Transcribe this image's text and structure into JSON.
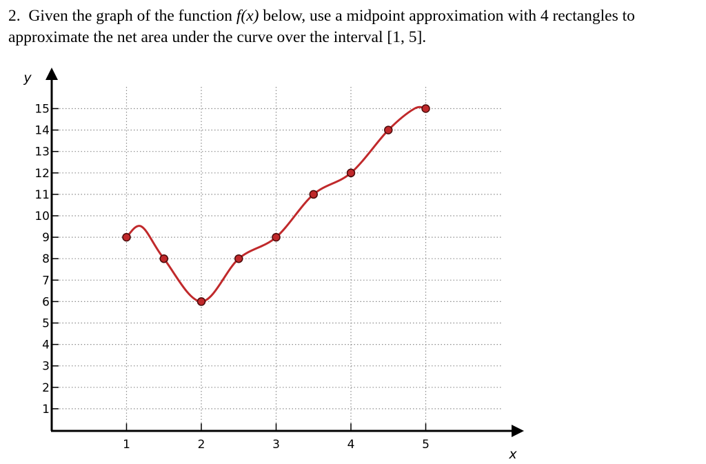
{
  "question": {
    "number": "2.",
    "line1_pre": "Given the graph of the function ",
    "func": "f(x)",
    "line1_post": " below, use a midpoint approximation with 4 rectangles to",
    "line2": "approximate the net area under the curve over the interval [1, 5]."
  },
  "chart_data": {
    "type": "line",
    "title": "",
    "xlabel": "x",
    "ylabel": "y",
    "xlim": [
      0,
      6
    ],
    "ylim": [
      0,
      16
    ],
    "grid": true,
    "x_ticks": [
      1,
      2,
      3,
      4,
      5
    ],
    "y_ticks": [
      1,
      2,
      3,
      4,
      5,
      6,
      7,
      8,
      9,
      10,
      11,
      12,
      13,
      14,
      15
    ],
    "curve": {
      "color": "#c0292b",
      "x": [
        1,
        1.2,
        1.5,
        2,
        2.5,
        3,
        3.5,
        4,
        4.5,
        4.85,
        5
      ],
      "y": [
        9,
        9.5,
        8,
        6,
        8,
        9,
        11,
        12,
        14,
        15,
        15
      ]
    },
    "points": {
      "color": "#c0292b",
      "x": [
        1,
        1.5,
        2,
        2.5,
        3,
        3.5,
        4,
        4.5,
        5
      ],
      "y": [
        9,
        8,
        6,
        8,
        9,
        11,
        12,
        14,
        15
      ]
    }
  }
}
